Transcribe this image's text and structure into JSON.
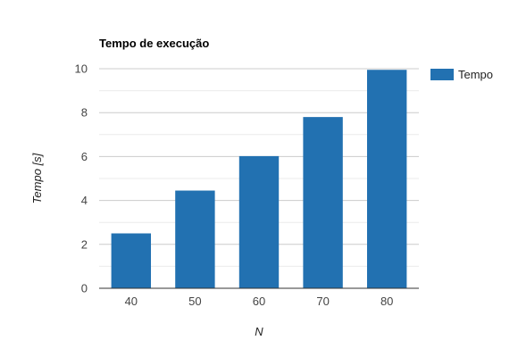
{
  "chart_data": {
    "type": "bar",
    "title": "Tempo de execução",
    "xlabel": "N",
    "ylabel": "Tempo [s]",
    "categories": [
      "40",
      "50",
      "60",
      "70",
      "80"
    ],
    "series": [
      {
        "name": "Tempo",
        "values": [
          2.5,
          4.45,
          6.02,
          7.8,
          9.95
        ],
        "color": "#2271b1"
      }
    ],
    "ylim": [
      0,
      10
    ],
    "yticks": [
      "0",
      "2",
      "4",
      "6",
      "8",
      "10"
    ],
    "grid": true,
    "minor_grid": true,
    "legend_position": "right"
  }
}
